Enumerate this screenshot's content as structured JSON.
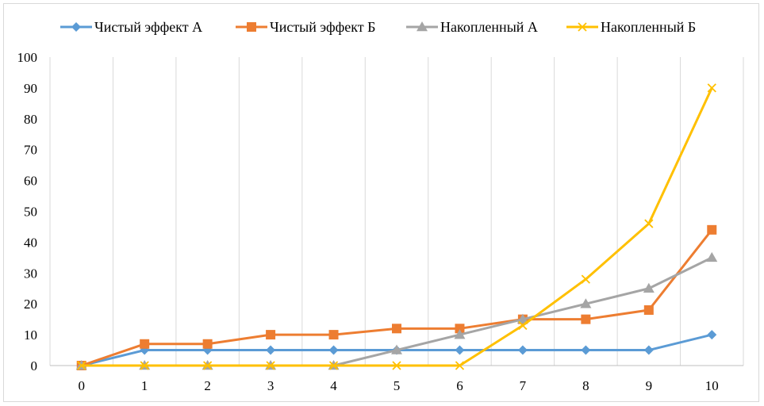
{
  "chart_data": {
    "type": "line",
    "title": "",
    "xlabel": "",
    "ylabel": "",
    "x": [
      0,
      1,
      2,
      3,
      4,
      5,
      6,
      7,
      8,
      9,
      10
    ],
    "ylim": [
      0,
      100
    ],
    "yticks": [
      0,
      10,
      20,
      30,
      40,
      50,
      60,
      70,
      80,
      90,
      100
    ],
    "grid": "vertical",
    "legend": "top",
    "series": [
      {
        "name": "Чистый эффект А",
        "color": "#5b9bd5",
        "marker": "diamond",
        "values": [
          0,
          5,
          5,
          5,
          5,
          5,
          5,
          5,
          5,
          5,
          10
        ]
      },
      {
        "name": "Чистый эффект Б",
        "color": "#ed7d31",
        "marker": "square",
        "values": [
          0,
          7,
          7,
          10,
          10,
          12,
          12,
          15,
          15,
          18,
          44
        ]
      },
      {
        "name": "Накопленный А",
        "color": "#a5a5a5",
        "marker": "triangle",
        "values": [
          0,
          0,
          0,
          0,
          0,
          5,
          10,
          15,
          20,
          25,
          35
        ]
      },
      {
        "name": "Накопленный Б",
        "color": "#ffc000",
        "marker": "x",
        "values": [
          0,
          0,
          0,
          0,
          0,
          0,
          0,
          13,
          28,
          46,
          90
        ]
      }
    ]
  }
}
